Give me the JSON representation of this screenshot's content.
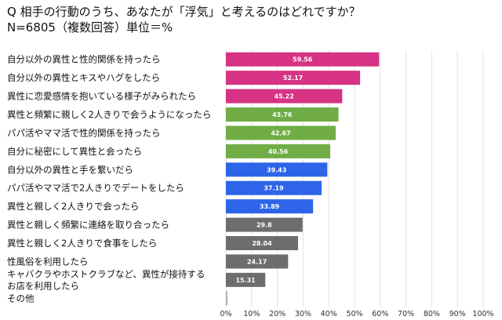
{
  "chart_data": {
    "type": "bar",
    "orientation": "horizontal",
    "title": "Q 相手の行動のうち、あなたが「浮気」と考えるのはどれですか？",
    "subtitle": "N=6805（複数回答）単位＝%",
    "categories": [
      [
        "自分以外の異性と性的関係を持ったら"
      ],
      [
        "自分以外の異性とキスやハグをしたら"
      ],
      [
        "異性に恋愛感情を抱いている様子がみられたら"
      ],
      [
        "異性と頻繁に親しく2人きりで会うようになったら"
      ],
      [
        "パパ活やママ活で性的関係を持ったら"
      ],
      [
        "自分に秘密にして異性と会ったら"
      ],
      [
        "自分以外の異性と手を繋いだら"
      ],
      [
        "パパ活やママ活で2人きりでデートをしたら"
      ],
      [
        "異性と親しく2人きりで会ったら"
      ],
      [
        "異性と親しく頻繁に連絡を取り合ったら"
      ],
      [
        "異性と親しく2人きりで食事をしたら"
      ],
      [
        "性風俗を利用したら"
      ],
      [
        "キャバクラやホストクラブなど、異性が接待する",
        "お店を利用したら"
      ],
      [
        "その他"
      ]
    ],
    "values": [
      59.56,
      52.17,
      45.22,
      43.76,
      42.67,
      40.56,
      39.43,
      37.19,
      33.89,
      29.8,
      28.04,
      24.17,
      15.31,
      0.6
    ],
    "value_labels": [
      "59.56",
      "52.17",
      "45.22",
      "43.76",
      "42.67",
      "40.56",
      "39.43",
      "37.19",
      "33.89",
      "29.8",
      "28.04",
      "24.17",
      "15.31",
      ""
    ],
    "bar_colors": [
      "#d63384",
      "#d63384",
      "#d63384",
      "#70ad47",
      "#70ad47",
      "#70ad47",
      "#2e64e8",
      "#2e64e8",
      "#2e64e8",
      "#6d6d6d",
      "#6d6d6d",
      "#6d6d6d",
      "#6d6d6d",
      "#b0b0b0"
    ],
    "xlim": [
      0,
      100
    ],
    "ticks": [
      "0%",
      "10%",
      "20%",
      "30%",
      "40%",
      "50%",
      "60%",
      "70%",
      "80%",
      "90%",
      "100%"
    ],
    "grid": true
  }
}
